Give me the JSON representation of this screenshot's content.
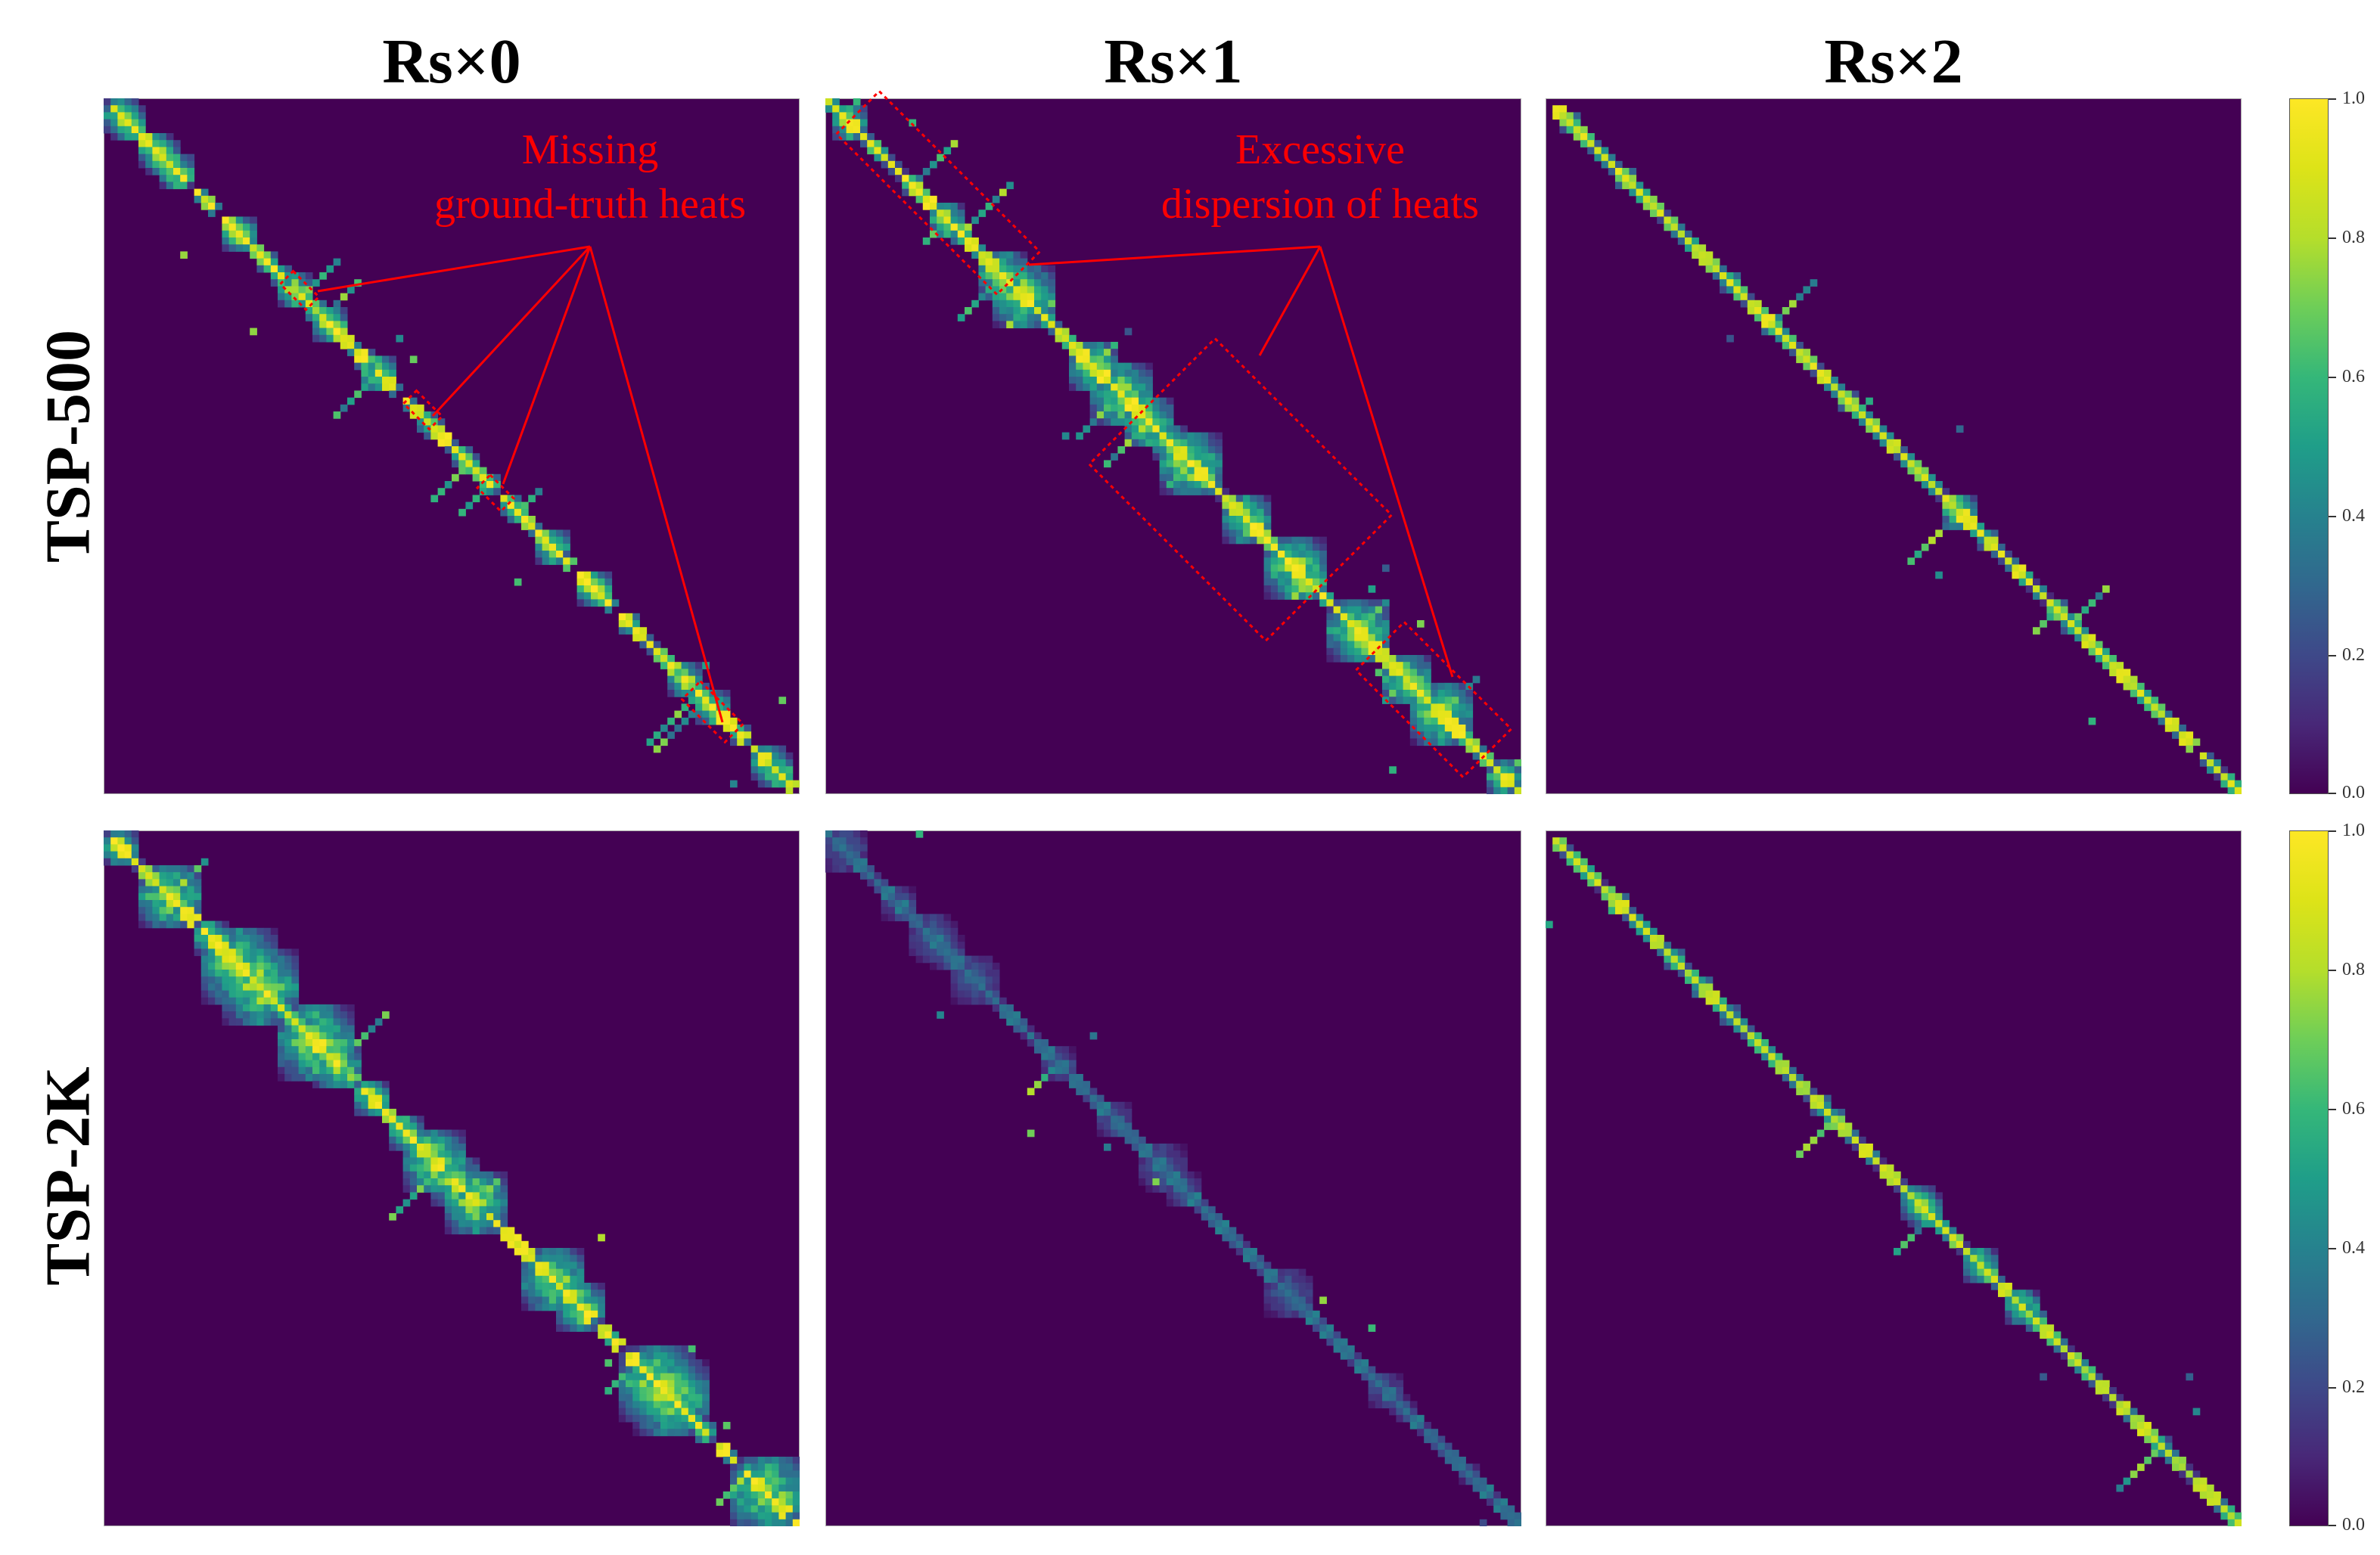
{
  "figure": {
    "col_titles": [
      "Rs×0",
      "Rs×1",
      "Rs×2"
    ],
    "row_titles": [
      "TSP-500",
      "TSP-2K"
    ],
    "annotations": [
      {
        "line1": "Missing",
        "line2": "ground-truth heats"
      },
      {
        "line1": "Excessive",
        "line2": "dispersion of heats"
      }
    ],
    "colorbar_ticks": [
      "1.0",
      "0.8",
      "0.6",
      "0.4",
      "0.2",
      "0.0"
    ]
  },
  "chart_data": [
    {
      "type": "heatmap",
      "row": "TSP-500",
      "col": "Rs×0",
      "colormap": "viridis",
      "vrange": [
        0,
        1
      ],
      "pattern": "diagonal band with sparse bright blobs; several gaps (missing heats) along the diagonal"
    },
    {
      "type": "heatmap",
      "row": "TSP-500",
      "col": "Rs×1",
      "colormap": "viridis",
      "vrange": [
        0,
        1
      ],
      "pattern": "diagonal band with widely dispersed heats forming crosses"
    },
    {
      "type": "heatmap",
      "row": "TSP-500",
      "col": "Rs×2",
      "colormap": "viridis",
      "vrange": [
        0,
        1
      ],
      "pattern": "clean thin diagonal with few off-diagonal heats"
    },
    {
      "type": "heatmap",
      "row": "TSP-2K",
      "col": "Rs×0",
      "colormap": "viridis",
      "vrange": [
        0,
        1
      ],
      "pattern": "diagonal with large saturated clusters"
    },
    {
      "type": "heatmap",
      "row": "TSP-2K",
      "col": "Rs×1",
      "colormap": "viridis",
      "vrange": [
        0,
        1
      ],
      "pattern": "faint low-intensity diagonal"
    },
    {
      "type": "heatmap",
      "row": "TSP-2K",
      "col": "Rs×2",
      "colormap": "viridis",
      "vrange": [
        0,
        1
      ],
      "pattern": "clean diagonal with moderate heats"
    }
  ],
  "colors": {
    "background": "#440154",
    "annotation": "#ff0000"
  }
}
